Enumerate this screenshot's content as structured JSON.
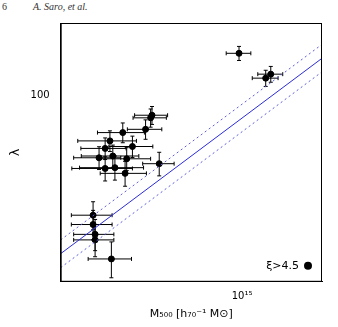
{
  "header": {
    "page": "6",
    "authors": "A. Saro, et al."
  },
  "chart_data": {
    "type": "scatter",
    "x_label": "M₅₀₀ [h₇₀⁻¹ M⊙]",
    "y_label": "λ",
    "log": true,
    "grid": false,
    "legend": "lower right",
    "xlim": [
      300000000000000.0,
      1700000000000000.0
    ],
    "ylim": [
      35,
      150
    ],
    "xticks": [
      {
        "value": 1000000000000000.0,
        "label": "10¹⁵"
      }
    ],
    "yticks": [
      100
    ],
    "series": [
      {
        "name": "ξ>4.5",
        "color": "#000000",
        "marker": "circle",
        "x": [
          980000000000000.0,
          1210000000000000.0,
          1170000000000000.0,
          550000000000000.0,
          545000000000000.0,
          527000000000000.0,
          453000000000000.0,
          416000000000000.0,
          483000000000000.0,
          403000000000000.0,
          424000000000000.0,
          387000000000000.0,
          465000000000000.0,
          430000000000000.0,
          403000000000000.0,
          577000000000000.0,
          460000000000000.0,
          372000000000000.0,
          372000000000000.0,
          377000000000000.0,
          377000000000000.0,
          420000000000000.0
        ],
        "values": [
          126.5,
          112.5,
          110,
          89.3,
          88,
          82.5,
          81,
          77.3,
          74.9,
          74.1,
          71,
          70.3,
          69.9,
          66.5,
          66.2,
          68,
          64.4,
          50.9,
          48.3,
          45.7,
          44.3,
          39.8
        ],
        "x_err": [
          80000000000000.0,
          100000000000000.0,
          100000000000000.0,
          60000000000000.0,
          60000000000000.0,
          60000000000000.0,
          70000000000000.0,
          80000000000000.0,
          70000000000000.0,
          60000000000000.0,
          80000000000000.0,
          60000000000000.0,
          80000000000000.0,
          90000000000000.0,
          80000000000000.0,
          60000000000000.0,
          70000000000000.0,
          50000000000000.0,
          50000000000000.0,
          50000000000000.0,
          50000000000000.0,
          60000000000000.0
        ],
        "y_err": [
          5,
          5,
          5,
          4.5,
          4.5,
          4.5,
          4.5,
          4.5,
          4.5,
          4.5,
          4.5,
          4.5,
          4.5,
          4.5,
          4.5,
          4.5,
          4.5,
          4,
          4,
          4,
          4,
          4
        ]
      }
    ],
    "fit_lines": [
      {
        "x": [
          300000000000000.0,
          1700000000000000.0
        ],
        "values": [
          41,
          123
        ],
        "color": "#2b2bd9",
        "line_style": "solid"
      },
      {
        "x": [
          300000000000000.0,
          1700000000000000.0
        ],
        "values": [
          44.3,
          133
        ],
        "color": "#5c5ce0",
        "line_style": "dotted"
      },
      {
        "x": [
          300000000000000.0,
          1700000000000000.0
        ],
        "values": [
          37.9,
          114
        ],
        "color": "#5c5ce0",
        "line_style": "dotted"
      }
    ]
  }
}
